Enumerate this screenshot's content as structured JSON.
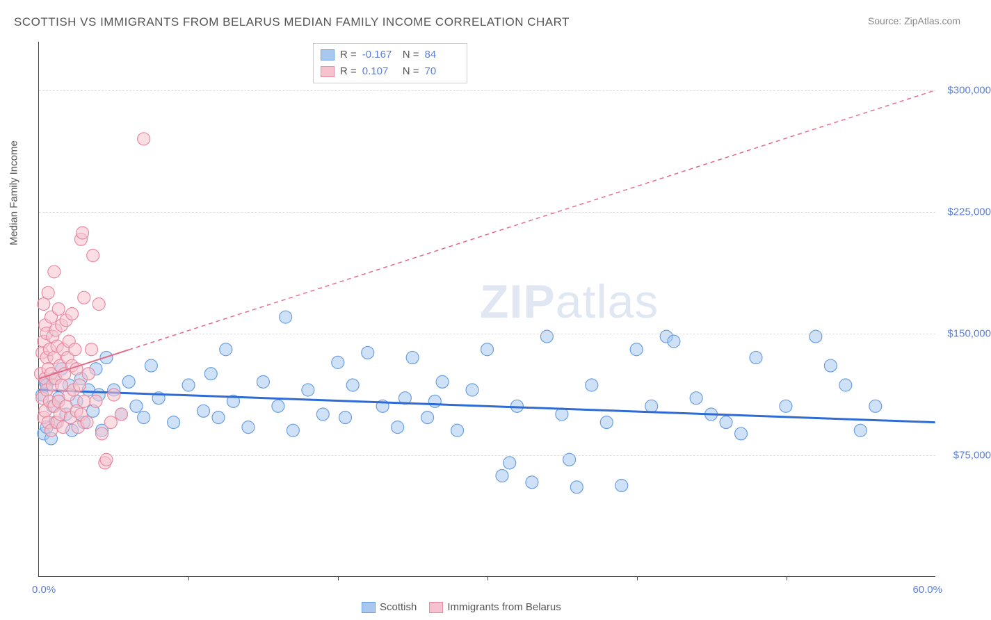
{
  "title": "SCOTTISH VS IMMIGRANTS FROM BELARUS MEDIAN FAMILY INCOME CORRELATION CHART",
  "source_label": "Source: ZipAtlas.com",
  "watermark_zip": "ZIP",
  "watermark_atlas": "atlas",
  "y_axis_title": "Median Family Income",
  "chart": {
    "type": "scatter",
    "xlim": [
      0,
      60
    ],
    "ylim": [
      0,
      330000
    ],
    "x_label_min": "0.0%",
    "x_label_max": "60.0%",
    "x_tick_interval_pct": 10,
    "y_ticks": [
      {
        "value": 75000,
        "label": "$75,000"
      },
      {
        "value": 150000,
        "label": "$150,000"
      },
      {
        "value": 225000,
        "label": "$225,000"
      },
      {
        "value": 300000,
        "label": "$300,000"
      }
    ],
    "grid_color": "#dddddd",
    "background_color": "#ffffff",
    "series": [
      {
        "name": "Scottish",
        "color_fill": "#a8c8f0",
        "color_stroke": "#6a9fe0",
        "marker_radius": 9,
        "fill_opacity": 0.55,
        "R": "-0.167",
        "N": "84",
        "trend": {
          "x1": 0,
          "y1": 115000,
          "x2": 60,
          "y2": 95000,
          "stroke": "#2e6bd4",
          "width": 3
        },
        "points": [
          [
            0.2,
            112000
          ],
          [
            0.3,
            88000
          ],
          [
            0.4,
            120000
          ],
          [
            0.5,
            92000
          ],
          [
            0.5,
            118000
          ],
          [
            0.8,
            85000
          ],
          [
            0.9,
            105000
          ],
          [
            1.0,
            122000
          ],
          [
            1.1,
            95000
          ],
          [
            1.3,
            110000
          ],
          [
            1.5,
            128000
          ],
          [
            1.8,
            100000
          ],
          [
            2.0,
            118000
          ],
          [
            2.2,
            90000
          ],
          [
            2.5,
            108000
          ],
          [
            2.8,
            122000
          ],
          [
            3.0,
            95000
          ],
          [
            3.3,
            115000
          ],
          [
            3.6,
            102000
          ],
          [
            3.8,
            128000
          ],
          [
            4.0,
            112000
          ],
          [
            4.2,
            90000
          ],
          [
            4.5,
            135000
          ],
          [
            5.0,
            115000
          ],
          [
            5.5,
            100000
          ],
          [
            6.0,
            120000
          ],
          [
            6.5,
            105000
          ],
          [
            7.0,
            98000
          ],
          [
            7.5,
            130000
          ],
          [
            8.0,
            110000
          ],
          [
            9.0,
            95000
          ],
          [
            10.0,
            118000
          ],
          [
            11.0,
            102000
          ],
          [
            11.5,
            125000
          ],
          [
            12.0,
            98000
          ],
          [
            12.5,
            140000
          ],
          [
            13.0,
            108000
          ],
          [
            14.0,
            92000
          ],
          [
            15.0,
            120000
          ],
          [
            16.0,
            105000
          ],
          [
            16.5,
            160000
          ],
          [
            17.0,
            90000
          ],
          [
            18.0,
            115000
          ],
          [
            19.0,
            100000
          ],
          [
            20.0,
            132000
          ],
          [
            20.5,
            98000
          ],
          [
            21.0,
            118000
          ],
          [
            22.0,
            138000
          ],
          [
            23.0,
            105000
          ],
          [
            24.0,
            92000
          ],
          [
            24.5,
            110000
          ],
          [
            25.0,
            135000
          ],
          [
            26.0,
            98000
          ],
          [
            26.5,
            108000
          ],
          [
            27.0,
            120000
          ],
          [
            28.0,
            90000
          ],
          [
            29.0,
            115000
          ],
          [
            30.0,
            140000
          ],
          [
            31.0,
            62000
          ],
          [
            31.5,
            70000
          ],
          [
            32.0,
            105000
          ],
          [
            33.0,
            58000
          ],
          [
            34.0,
            148000
          ],
          [
            35.0,
            100000
          ],
          [
            35.5,
            72000
          ],
          [
            36.0,
            55000
          ],
          [
            37.0,
            118000
          ],
          [
            38.0,
            95000
          ],
          [
            39.0,
            56000
          ],
          [
            40.0,
            140000
          ],
          [
            41.0,
            105000
          ],
          [
            42.0,
            148000
          ],
          [
            42.5,
            145000
          ],
          [
            44.0,
            110000
          ],
          [
            45.0,
            100000
          ],
          [
            46.0,
            95000
          ],
          [
            47.0,
            88000
          ],
          [
            48.0,
            135000
          ],
          [
            50.0,
            105000
          ],
          [
            52.0,
            148000
          ],
          [
            53.0,
            130000
          ],
          [
            54.0,
            118000
          ],
          [
            55.0,
            90000
          ],
          [
            56.0,
            105000
          ]
        ]
      },
      {
        "name": "Immigrants from Belarus",
        "color_fill": "#f5c2ce",
        "color_stroke": "#e88aa0",
        "marker_radius": 9,
        "fill_opacity": 0.55,
        "R": "0.107",
        "N": "70",
        "trend": {
          "x1": 0,
          "y1": 122000,
          "x2": 60,
          "y2": 300000,
          "stroke": "#e56a88",
          "width": 2,
          "dashed_after_x": 6
        },
        "points": [
          [
            0.1,
            125000
          ],
          [
            0.2,
            138000
          ],
          [
            0.2,
            110000
          ],
          [
            0.3,
            145000
          ],
          [
            0.3,
            98000
          ],
          [
            0.3,
            168000
          ],
          [
            0.4,
            122000
          ],
          [
            0.4,
            155000
          ],
          [
            0.4,
            102000
          ],
          [
            0.5,
            135000
          ],
          [
            0.5,
            150000
          ],
          [
            0.5,
            115000
          ],
          [
            0.6,
            128000
          ],
          [
            0.6,
            175000
          ],
          [
            0.6,
            95000
          ],
          [
            0.7,
            140000
          ],
          [
            0.7,
            108000
          ],
          [
            0.8,
            160000
          ],
          [
            0.8,
            125000
          ],
          [
            0.8,
            90000
          ],
          [
            0.9,
            148000
          ],
          [
            0.9,
            118000
          ],
          [
            1.0,
            135000
          ],
          [
            1.0,
            105000
          ],
          [
            1.0,
            188000
          ],
          [
            1.1,
            122000
          ],
          [
            1.1,
            152000
          ],
          [
            1.2,
            95000
          ],
          [
            1.2,
            142000
          ],
          [
            1.3,
            108000
          ],
          [
            1.3,
            165000
          ],
          [
            1.4,
            130000
          ],
          [
            1.4,
            100000
          ],
          [
            1.5,
            155000
          ],
          [
            1.5,
            118000
          ],
          [
            1.6,
            140000
          ],
          [
            1.6,
            92000
          ],
          [
            1.7,
            125000
          ],
          [
            1.8,
            158000
          ],
          [
            1.8,
            105000
          ],
          [
            1.9,
            135000
          ],
          [
            2.0,
            112000
          ],
          [
            2.0,
            145000
          ],
          [
            2.1,
            98000
          ],
          [
            2.2,
            130000
          ],
          [
            2.2,
            162000
          ],
          [
            2.3,
            115000
          ],
          [
            2.4,
            140000
          ],
          [
            2.5,
            102000
          ],
          [
            2.5,
            128000
          ],
          [
            2.6,
            92000
          ],
          [
            2.7,
            118000
          ],
          [
            2.8,
            100000
          ],
          [
            2.8,
            208000
          ],
          [
            2.9,
            212000
          ],
          [
            3.0,
            108000
          ],
          [
            3.0,
            172000
          ],
          [
            3.2,
            95000
          ],
          [
            3.3,
            125000
          ],
          [
            3.5,
            140000
          ],
          [
            3.6,
            198000
          ],
          [
            3.8,
            108000
          ],
          [
            4.0,
            168000
          ],
          [
            4.2,
            88000
          ],
          [
            4.4,
            70000
          ],
          [
            4.5,
            72000
          ],
          [
            4.8,
            95000
          ],
          [
            5.0,
            112000
          ],
          [
            5.5,
            100000
          ],
          [
            7.0,
            270000
          ]
        ]
      }
    ]
  },
  "stats_legend": {
    "r_label": "R =",
    "n_label": "N ="
  },
  "bottom_legend": {
    "items": [
      "Scottish",
      "Immigrants from Belarus"
    ]
  }
}
